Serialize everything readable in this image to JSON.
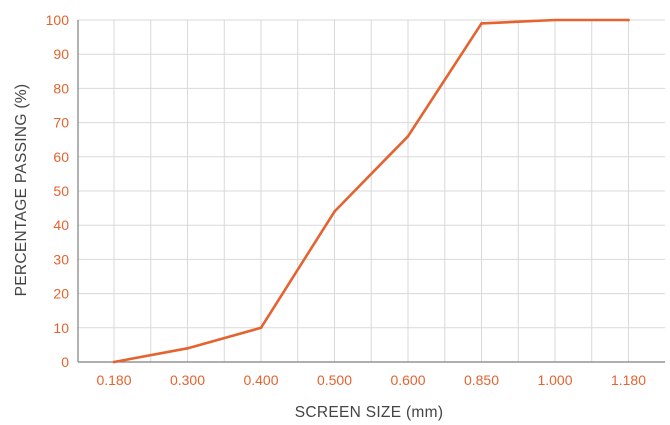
{
  "chart_data": {
    "type": "line",
    "title": "",
    "xlabel": "SCREEN SIZE (mm)",
    "ylabel": "PERCENTAGE PASSING (%)",
    "categories": [
      "0.180",
      "0.300",
      "0.400",
      "0.500",
      "0.600",
      "0.850",
      "1.000",
      "1.180"
    ],
    "series": [
      {
        "values": [
          0,
          4,
          10,
          44,
          66,
          99,
          100,
          100
        ],
        "color": "#e4632f"
      }
    ],
    "ylim": [
      0,
      100
    ],
    "yticks": [
      0,
      10,
      20,
      30,
      40,
      50,
      60,
      70,
      80,
      90,
      100
    ],
    "grid": true,
    "legend": "none",
    "colors": {
      "tick_label": "#e4632f",
      "grid": "#d9d9d9",
      "axis": "#7f7f7f",
      "axis_title": "#444444"
    }
  }
}
